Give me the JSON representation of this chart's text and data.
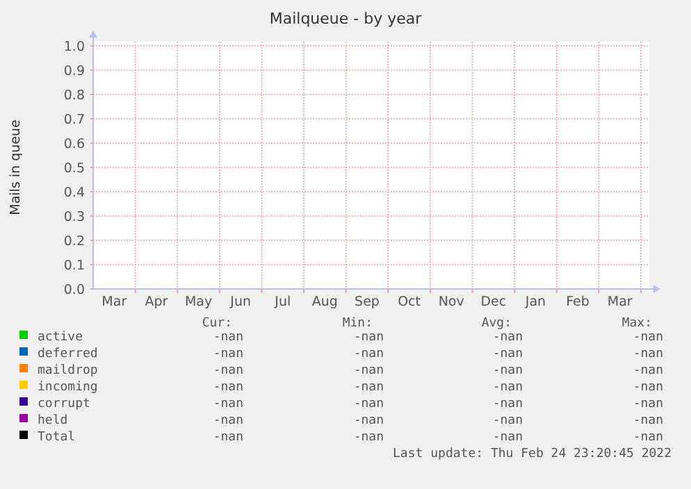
{
  "chart_data": {
    "type": "line",
    "title": "Mailqueue - by year",
    "ylabel": "Mails in queue",
    "categories": [
      "Mar",
      "Apr",
      "May",
      "Jun",
      "Jul",
      "Aug",
      "Sep",
      "Oct",
      "Nov",
      "Dec",
      "Jan",
      "Feb",
      "Mar"
    ],
    "ylim": [
      0,
      1
    ],
    "yticks": [
      {
        "value": 0,
        "label": "0.0"
      },
      {
        "value": 0.1,
        "label": "0.1"
      },
      {
        "value": 0.2,
        "label": "0.2"
      },
      {
        "value": 0.3,
        "label": "0.3"
      },
      {
        "value": 0.4,
        "label": "0.4"
      },
      {
        "value": 0.5,
        "label": "0.5"
      },
      {
        "value": 0.6,
        "label": "0.6"
      },
      {
        "value": 0.7,
        "label": "0.7"
      },
      {
        "value": 0.8,
        "label": "0.8"
      },
      {
        "value": 0.9,
        "label": "0.9"
      },
      {
        "value": 1,
        "label": "1.0"
      }
    ],
    "grid": true,
    "legend": "bottom",
    "series": [
      {
        "name": "active",
        "color": "#00cc00",
        "values": [
          null,
          null,
          null,
          null,
          null,
          null,
          null,
          null,
          null,
          null,
          null,
          null,
          null
        ]
      },
      {
        "name": "deferred",
        "color": "#0066b3",
        "values": [
          null,
          null,
          null,
          null,
          null,
          null,
          null,
          null,
          null,
          null,
          null,
          null,
          null
        ]
      },
      {
        "name": "maildrop",
        "color": "#ff8000",
        "values": [
          null,
          null,
          null,
          null,
          null,
          null,
          null,
          null,
          null,
          null,
          null,
          null,
          null
        ]
      },
      {
        "name": "incoming",
        "color": "#ffcc00",
        "values": [
          null,
          null,
          null,
          null,
          null,
          null,
          null,
          null,
          null,
          null,
          null,
          null,
          null
        ]
      },
      {
        "name": "corrupt",
        "color": "#330099",
        "values": [
          null,
          null,
          null,
          null,
          null,
          null,
          null,
          null,
          null,
          null,
          null,
          null,
          null
        ]
      },
      {
        "name": "held",
        "color": "#990099",
        "values": [
          null,
          null,
          null,
          null,
          null,
          null,
          null,
          null,
          null,
          null,
          null,
          null,
          null
        ]
      },
      {
        "name": "Total",
        "color": "#000000",
        "values": [
          null,
          null,
          null,
          null,
          null,
          null,
          null,
          null,
          null,
          null,
          null,
          null,
          null
        ]
      }
    ],
    "annotations": [
      "Cur:",
      "Min:",
      "Avg:",
      "Max:",
      "-nan",
      "-nan",
      "-nan",
      "-nan",
      "-nan",
      "-nan",
      "-nan",
      "-nan",
      "-nan",
      "-nan",
      "-nan",
      "-nan",
      "-nan",
      "-nan",
      "-nan",
      "-nan",
      "-nan",
      "-nan",
      "-nan",
      "-nan",
      "-nan",
      "-nan",
      "-nan",
      "-nan",
      "-nan",
      "-nan",
      "-nan",
      "-nan",
      "Last update:  Thu Feb 24 23:20:45 2022"
    ]
  }
}
